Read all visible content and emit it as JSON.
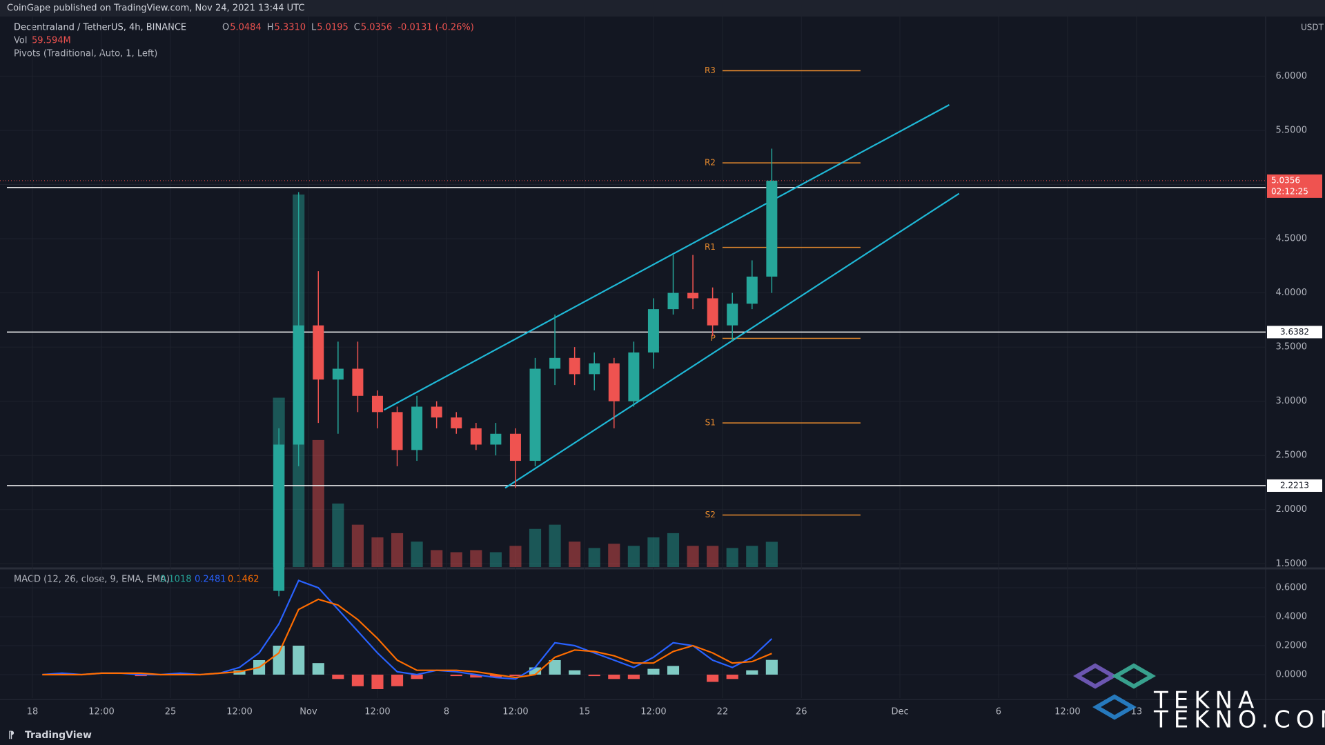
{
  "page": {
    "published": "CoinGape published on TradingView.com, Nov 24, 2021 13:44 UTC",
    "footer": "TradingView",
    "watermark": [
      "TEKNA",
      "TEKNO.COM"
    ]
  },
  "chart_data": {
    "type": "candlestick",
    "title": "Decentraland / TetherUS, 4h, BINANCE",
    "ohlc_legend": [
      {
        "k": "O",
        "v": "5.0484"
      },
      {
        "k": "H",
        "v": "5.3310"
      },
      {
        "k": "L",
        "v": "5.0195"
      },
      {
        "k": "C",
        "v": "5.0356"
      },
      {
        "k": "",
        "v": "-0.0131 (-0.26%)"
      }
    ],
    "volume_title": "Vol",
    "volume_value_label": "59.594M",
    "pivots_title": "Pivots (Traditional, Auto, 1, Left)",
    "up_color": "#26a69a",
    "down_color": "#ef5350",
    "x": [
      "2021-10-30T12:00",
      "2021-10-31T12:00",
      "2021-11-01T12:00",
      "2021-11-02T12:00",
      "2021-11-03T12:00",
      "2021-11-04T12:00",
      "2021-11-05T12:00",
      "2021-11-06T12:00",
      "2021-11-07T12:00",
      "2021-11-08T12:00",
      "2021-11-09T12:00",
      "2021-11-10T12:00",
      "2021-11-11T12:00",
      "2021-11-12T12:00",
      "2021-11-13T12:00",
      "2021-11-14T12:00",
      "2021-11-15T12:00",
      "2021-11-16T12:00",
      "2021-11-17T12:00",
      "2021-11-18T12:00",
      "2021-11-19T12:00",
      "2021-11-20T12:00",
      "2021-11-21T12:00",
      "2021-11-22T12:00",
      "2021-11-23T12:00",
      "2021-11-24T12:00"
    ],
    "open": [
      1.25,
      2.6,
      3.7,
      3.2,
      3.3,
      3.05,
      2.9,
      2.55,
      2.95,
      2.85,
      2.75,
      2.6,
      2.7,
      2.45,
      3.3,
      3.4,
      3.25,
      3.35,
      3.0,
      3.45,
      3.85,
      4.0,
      3.95,
      3.7,
      3.9,
      4.15
    ],
    "high": [
      2.75,
      4.93,
      4.2,
      3.55,
      3.55,
      3.1,
      2.95,
      3.05,
      3.0,
      2.9,
      2.8,
      2.8,
      2.75,
      3.4,
      3.8,
      3.5,
      3.45,
      3.4,
      3.55,
      3.95,
      4.35,
      4.35,
      4.05,
      4.0,
      4.3,
      5.331
    ],
    "low": [
      1.2,
      2.4,
      2.8,
      2.7,
      2.9,
      2.75,
      2.4,
      2.45,
      2.75,
      2.7,
      2.55,
      2.5,
      2.2,
      2.4,
      3.15,
      3.15,
      3.1,
      2.75,
      2.95,
      3.3,
      3.8,
      3.85,
      3.6,
      3.55,
      3.85,
      4.0
    ],
    "close": [
      2.6,
      3.7,
      3.2,
      3.3,
      3.05,
      2.9,
      2.55,
      2.95,
      2.85,
      2.75,
      2.6,
      2.7,
      2.45,
      3.3,
      3.4,
      3.25,
      3.35,
      3.0,
      3.45,
      3.85,
      4.0,
      3.95,
      3.7,
      3.9,
      4.15,
      5.0356
    ],
    "volume": {
      "values": [
        400,
        880,
        300,
        150,
        100,
        70,
        80,
        60,
        40,
        35,
        40,
        35,
        50,
        90,
        100,
        60,
        45,
        55,
        50,
        70,
        80,
        50,
        50,
        45,
        50,
        59.594
      ]
    },
    "ylim": [
      1.47,
      6.55
    ],
    "yticks": [
      {
        "value": 1.5,
        "label": "1.5000"
      },
      {
        "value": 2,
        "label": "2.0000"
      },
      {
        "value": 2.5,
        "label": "2.5000"
      },
      {
        "value": 3,
        "label": "3.0000"
      },
      {
        "value": 3.5,
        "label": "3.5000"
      },
      {
        "value": 4,
        "label": "4.0000"
      },
      {
        "value": 4.5,
        "label": "4.5000"
      },
      {
        "value": 5,
        "label": "5.0000"
      },
      {
        "value": 5.5,
        "label": "5.5000"
      },
      {
        "value": 6,
        "label": "6.0000"
      }
    ],
    "y_unit": "USDT",
    "xlim": [
      "2021-10-16T08:30",
      "2021-12-19T13:12"
    ],
    "xticks": [
      {
        "value": "2021-10-18T00:00",
        "label": "18"
      },
      {
        "value": "2021-10-21T12:00",
        "label": "12:00"
      },
      {
        "value": "2021-10-25T00:00",
        "label": "25"
      },
      {
        "value": "2021-10-28T12:00",
        "label": "12:00"
      },
      {
        "value": "2021-11-01T00:00",
        "label": "Nov"
      },
      {
        "value": "2021-11-04T12:00",
        "label": "12:00"
      },
      {
        "value": "2021-11-08T00:00",
        "label": "8"
      },
      {
        "value": "2021-11-11T12:00",
        "label": "12:00"
      },
      {
        "value": "2021-11-15T00:00",
        "label": "15"
      },
      {
        "value": "2021-11-18T12:00",
        "label": "12:00"
      },
      {
        "value": "2021-11-22T00:00",
        "label": "22"
      },
      {
        "value": "2021-11-26T00:00",
        "label": "26"
      },
      {
        "value": "2021-12-01T00:00",
        "label": "Dec"
      },
      {
        "value": "2021-12-06T00:00",
        "label": "6"
      },
      {
        "value": "2021-12-09T12:00",
        "label": "12:00"
      },
      {
        "value": "2021-12-13T00:00",
        "label": "13"
      }
    ],
    "levels": [
      4.9719,
      3.6382,
      2.2213
    ],
    "last_price": 5.0356,
    "countdown": "02:12:25",
    "pivot_color": "#e68a2e",
    "pivot_start": "2021-11-22T00:00",
    "pivot_end": "2021-11-29T00:00",
    "pivots": [
      {
        "label": "R3",
        "value": 6.05
      },
      {
        "label": "R2",
        "value": 5.2
      },
      {
        "label": "R1",
        "value": 4.42
      },
      {
        "label": "P",
        "value": 3.58
      },
      {
        "label": "S1",
        "value": 2.8
      },
      {
        "label": "S2",
        "value": 1.95
      }
    ],
    "channel_color": "#1fb8d6",
    "channel": [
      [
        {
          "x": "2021-11-04T20:00",
          "y": 2.92
        },
        {
          "x": "2021-12-03T12:00",
          "y": 5.735
        }
      ],
      [
        {
          "x": "2021-11-10T23:30",
          "y": 2.2
        },
        {
          "x": "2021-12-04T00:00",
          "y": 4.917
        }
      ]
    ],
    "macd_pane": {
      "title": "MACD (12, 26, close, 9, EMA, EMA)",
      "x": [
        "2021-10-18T12:00",
        "2021-10-19T12:00",
        "2021-10-20T12:00",
        "2021-10-21T12:00",
        "2021-10-22T12:00",
        "2021-10-23T12:00",
        "2021-10-24T12:00",
        "2021-10-25T12:00",
        "2021-10-26T12:00",
        "2021-10-27T12:00",
        "2021-10-28T12:00",
        "2021-10-29T12:00",
        "2021-10-30T12:00",
        "2021-10-31T12:00",
        "2021-11-01T12:00",
        "2021-11-02T12:00",
        "2021-11-03T12:00",
        "2021-11-04T12:00",
        "2021-11-05T12:00",
        "2021-11-06T12:00",
        "2021-11-07T12:00",
        "2021-11-08T12:00",
        "2021-11-09T12:00",
        "2021-11-10T12:00",
        "2021-11-11T12:00",
        "2021-11-12T12:00",
        "2021-11-13T12:00",
        "2021-11-14T12:00",
        "2021-11-15T12:00",
        "2021-11-16T12:00",
        "2021-11-17T12:00",
        "2021-11-18T12:00",
        "2021-11-19T12:00",
        "2021-11-20T12:00",
        "2021-11-21T12:00",
        "2021-11-22T12:00",
        "2021-11-23T12:00",
        "2021-11-24T12:00"
      ],
      "histogram": {
        "pos_color": "#80cbc4",
        "neg_color": "#ef5350",
        "values": [
          0,
          0.01,
          0,
          0,
          0,
          -0.01,
          0,
          0.01,
          0,
          0,
          0.03,
          0.1,
          0.2,
          0.2,
          0.08,
          -0.03,
          -0.08,
          -0.1,
          -0.08,
          -0.03,
          0,
          -0.01,
          -0.02,
          -0.02,
          -0.01,
          0.05,
          0.1,
          0.03,
          -0.01,
          -0.03,
          -0.03,
          0.04,
          0.06,
          0,
          -0.05,
          -0.03,
          0.03,
          0.1018
        ]
      },
      "macd": {
        "color": "#2962ff",
        "values": [
          0,
          0.01,
          0,
          0.01,
          0.01,
          0,
          0,
          0.01,
          0,
          0.01,
          0.05,
          0.15,
          0.35,
          0.65,
          0.6,
          0.45,
          0.3,
          0.15,
          0.02,
          0,
          0.03,
          0.02,
          0,
          -0.02,
          -0.03,
          0.05,
          0.22,
          0.2,
          0.15,
          0.1,
          0.05,
          0.12,
          0.22,
          0.2,
          0.1,
          0.05,
          0.12,
          0.2481
        ]
      },
      "signal": {
        "color": "#ff6d00",
        "values": [
          0,
          0,
          0,
          0.01,
          0.01,
          0.01,
          0,
          0,
          0,
          0.01,
          0.02,
          0.05,
          0.15,
          0.45,
          0.52,
          0.48,
          0.38,
          0.25,
          0.1,
          0.03,
          0.03,
          0.03,
          0.02,
          0,
          -0.02,
          0,
          0.12,
          0.17,
          0.16,
          0.13,
          0.08,
          0.08,
          0.16,
          0.2,
          0.15,
          0.08,
          0.09,
          0.1462
        ]
      },
      "ylim": [
        -0.162,
        0.724
      ],
      "yticks": [
        {
          "value": 0,
          "label": "0.0000"
        },
        {
          "value": 0.2,
          "label": "0.2000"
        },
        {
          "value": 0.4,
          "label": "0.4000"
        },
        {
          "value": 0.6,
          "label": "0.6000"
        }
      ]
    }
  }
}
